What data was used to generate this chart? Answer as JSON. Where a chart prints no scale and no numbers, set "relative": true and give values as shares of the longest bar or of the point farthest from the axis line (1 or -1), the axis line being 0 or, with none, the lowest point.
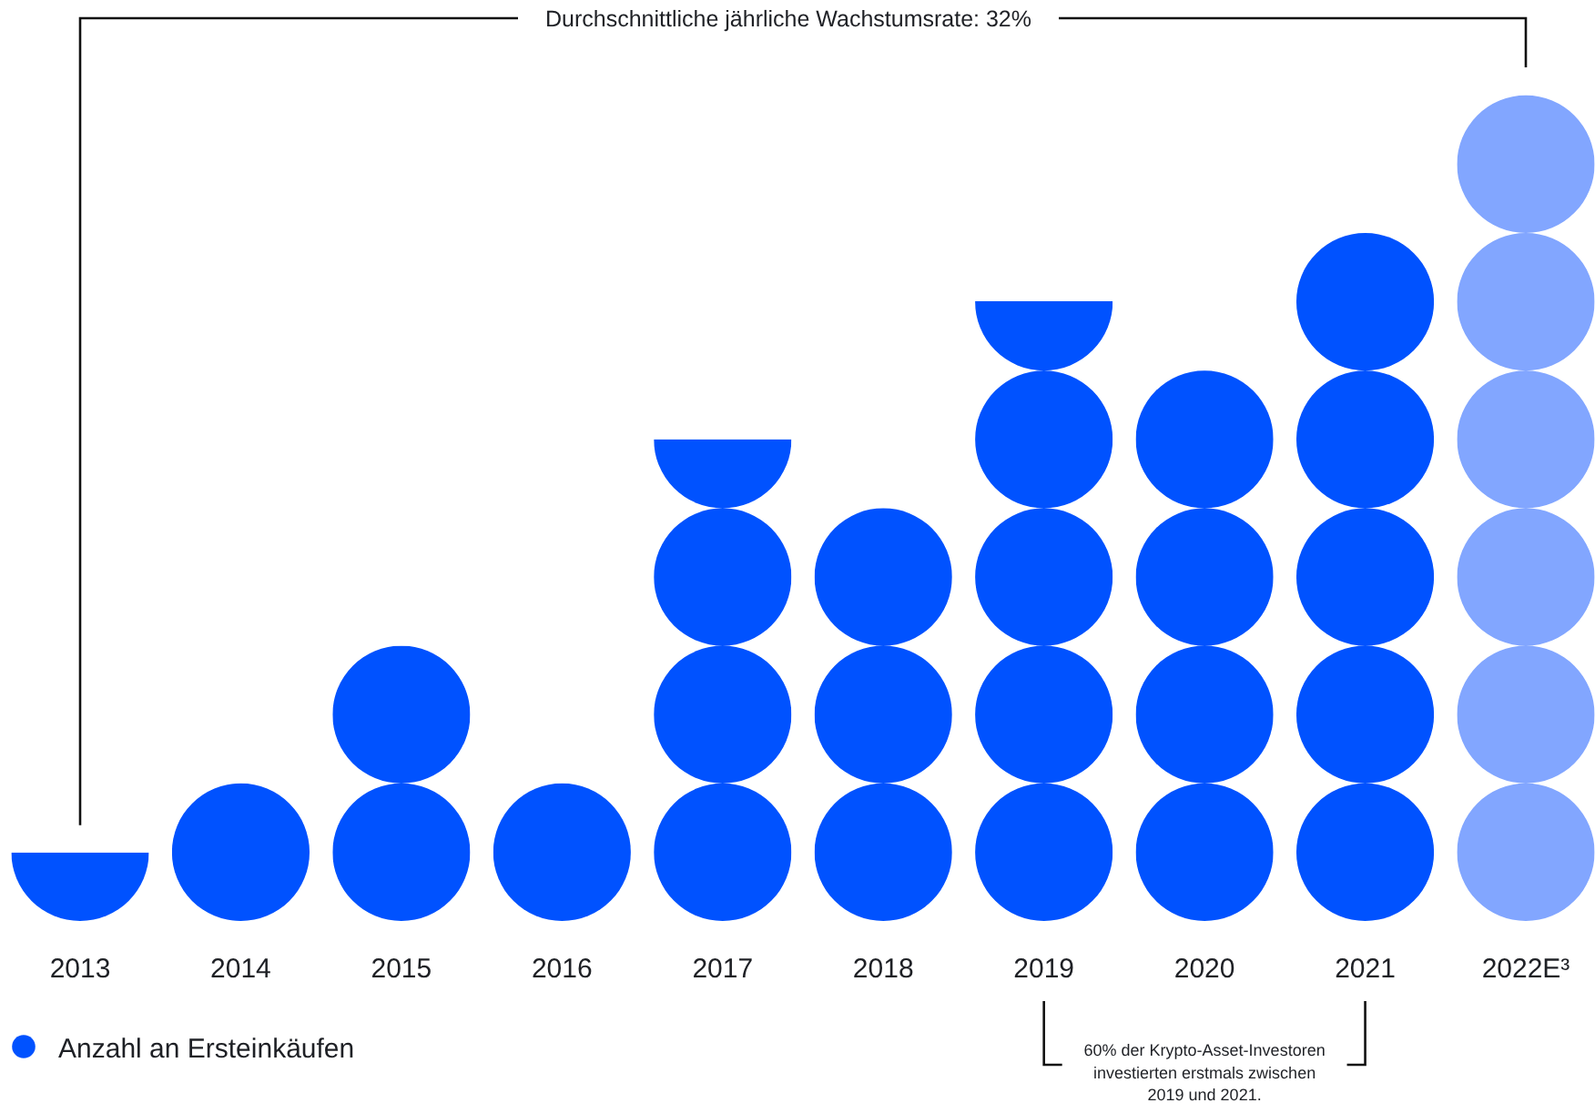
{
  "chart_data": {
    "type": "bar",
    "relative": true,
    "categories": [
      "2013",
      "2014",
      "2015",
      "2016",
      "2017",
      "2018",
      "2019",
      "2020",
      "2021",
      "2022E³"
    ],
    "series": [
      {
        "name": "Anzahl an Ersteinkäufen",
        "color": "#0052ff",
        "colors": [
          "#0052ff",
          "#0052ff",
          "#0052ff",
          "#0052ff",
          "#0052ff",
          "#0052ff",
          "#0052ff",
          "#0052ff",
          "#0052ff",
          "#82a6ff"
        ],
        "values": [
          0.083,
          0.167,
          0.333,
          0.167,
          0.583,
          0.5,
          0.75,
          0.667,
          0.833,
          1
        ]
      }
    ],
    "legend": "bottom left",
    "annotations": [
      "Durchschnittliche jährliche Wachstumsrate: 32%",
      "60% der Krypto-Asset-Investoren investierten erstmals zwischen 2019 und 2021."
    ]
  }
}
